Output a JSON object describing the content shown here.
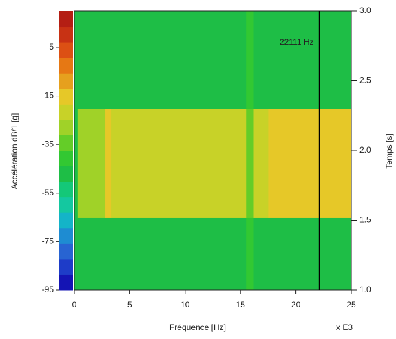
{
  "chart_data": {
    "type": "spectrogram",
    "y_label": "Accélération  dB/1 [g]",
    "x_label": "Fréquence [Hz]",
    "x_multiplier": "x E3",
    "y2_label": "Temps [s]",
    "xlim": [
      0,
      25
    ],
    "xticks": [
      0,
      5,
      10,
      15,
      20,
      25
    ],
    "ylim": [
      1.0,
      3.0
    ],
    "yticks": [
      {
        "value": 1.0,
        "label": "1.0"
      },
      {
        "value": 1.5,
        "label": "1.5"
      },
      {
        "value": 2.0,
        "label": "2.0"
      },
      {
        "value": 2.5,
        "label": "2.5"
      },
      {
        "value": 3.0,
        "label": "3.0"
      }
    ],
    "clim": [
      -95,
      20
    ],
    "cticks": [
      5,
      -15,
      -35,
      -55,
      -75,
      -95
    ],
    "colormap": [
      "#1414b4",
      "#1e3cc8",
      "#2864d2",
      "#1e8cd2",
      "#14b4c8",
      "#14c8a0",
      "#14c878",
      "#1ebe46",
      "#32c832",
      "#64cd28",
      "#a0d228",
      "#c8d228",
      "#e6c828",
      "#e6a01e",
      "#e67814",
      "#dc5014",
      "#c83214",
      "#b41e14"
    ],
    "x_edges": [
      0.3,
      2.8,
      3.3,
      15.5,
      16.2,
      17.5,
      25
    ],
    "time_edges": [
      1.0,
      1.52,
      2.3,
      3.0
    ],
    "z": [
      [
        -50,
        -50,
        -50,
        -42,
        -50,
        -50
      ],
      [
        -25,
        -12,
        -24,
        -35,
        -24,
        -14
      ],
      [
        -50,
        -46,
        -50,
        -40,
        -50,
        -50
      ]
    ],
    "cursor": {
      "x": 22.111,
      "label": "22111 Hz"
    }
  }
}
